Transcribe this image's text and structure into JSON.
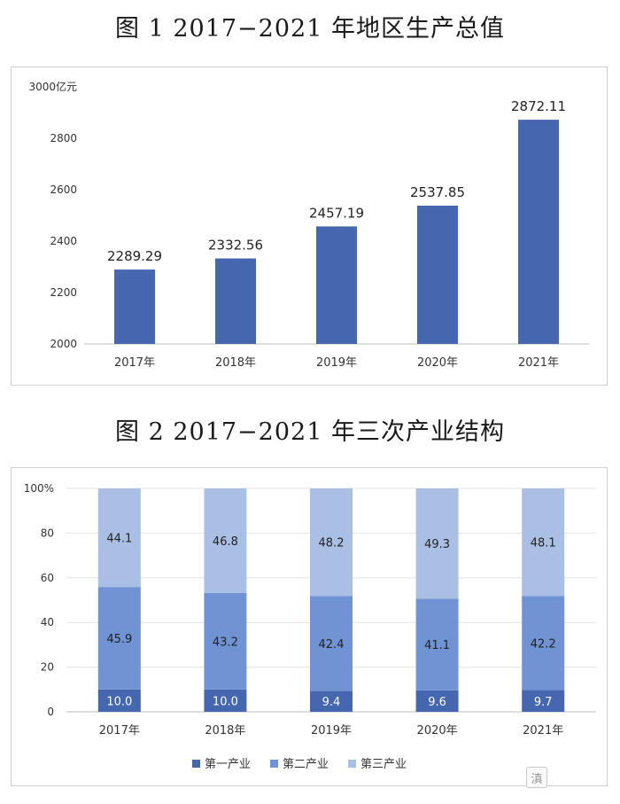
{
  "figure1": {
    "title": "图 1 2017−2021 年地区生产总值",
    "chart_data": {
      "type": "bar",
      "categories": [
        "2017年",
        "2018年",
        "2019年",
        "2020年",
        "2021年"
      ],
      "values": [
        2289.29,
        2332.56,
        2457.19,
        2537.85,
        2872.11
      ],
      "value_labels": [
        "2289.29",
        "2332.56",
        "2457.19",
        "2537.85",
        "2872.11"
      ],
      "y_ticks": [
        "3000亿元",
        "2800",
        "2600",
        "2400",
        "2200",
        "2000"
      ],
      "ylim": [
        2000,
        3000
      ],
      "grid": false,
      "color": "#4467b0"
    }
  },
  "figure2": {
    "title": "图 2 2017−2021 年三次产业结构",
    "chart_data": {
      "type": "bar",
      "stacked": true,
      "categories": [
        "2017年",
        "2018年",
        "2019年",
        "2020年",
        "2021年"
      ],
      "series": [
        {
          "name": "第一产业",
          "values": [
            10.0,
            10.0,
            9.4,
            9.6,
            9.7
          ],
          "labels": [
            "10.0",
            "10.0",
            "9.4",
            "9.6",
            "9.7"
          ],
          "color": "#4467b0"
        },
        {
          "name": "第二产业",
          "values": [
            45.9,
            43.2,
            42.4,
            41.1,
            42.2
          ],
          "labels": [
            "45.9",
            "43.2",
            "42.4",
            "41.1",
            "42.2"
          ],
          "color": "#6f93d3"
        },
        {
          "name": "第三产业",
          "values": [
            44.1,
            46.8,
            48.2,
            49.3,
            48.1
          ],
          "labels": [
            "44.1",
            "46.8",
            "48.2",
            "49.3",
            "48.1"
          ],
          "color": "#a9bfe3"
        }
      ],
      "y_ticks": [
        "100%",
        "80",
        "60",
        "40",
        "20",
        "0"
      ],
      "ylim": [
        0,
        100
      ],
      "grid": true,
      "legend": "bottom"
    }
  },
  "watermark": "滇"
}
